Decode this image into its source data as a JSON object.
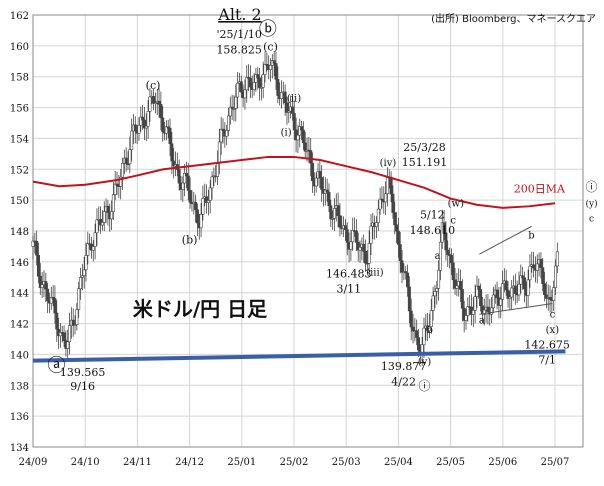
{
  "chart_data": {
    "type": "bar",
    "title": "Alt. 2",
    "subtitle": "米ドル/円 日足",
    "source": "(出所) Bloomberg、マネースクエア",
    "xlabel": "",
    "ylabel": "",
    "ylim": [
      134,
      162
    ],
    "yticks": [
      134,
      136,
      138,
      140,
      142,
      144,
      146,
      148,
      150,
      152,
      154,
      156,
      158,
      160,
      162
    ],
    "xticks": [
      "24/09",
      "24/10",
      "24/11",
      "24/12",
      "25/01",
      "25/02",
      "25/03",
      "25/04",
      "25/05",
      "25/06",
      "25/07"
    ],
    "grid": true,
    "colors": {
      "candles": "#444444",
      "ma": "#c0141c",
      "trendline": "#3a5fa8",
      "wedge": "#555555",
      "text": "#111111"
    },
    "series": [
      {
        "name": "200日MA",
        "type": "line",
        "points": [
          [
            0.0,
            151.2
          ],
          [
            0.5,
            150.9
          ],
          [
            1.0,
            151.0
          ],
          [
            1.6,
            151.3
          ],
          [
            2.0,
            151.6
          ],
          [
            2.5,
            152.0
          ],
          [
            3.0,
            152.2
          ],
          [
            3.5,
            152.4
          ],
          [
            4.0,
            152.6
          ],
          [
            4.5,
            152.8
          ],
          [
            5.0,
            152.8
          ],
          [
            5.5,
            152.6
          ],
          [
            6.0,
            152.2
          ],
          [
            6.5,
            151.8
          ],
          [
            7.0,
            151.3
          ],
          [
            7.5,
            150.8
          ],
          [
            8.0,
            150.1
          ],
          [
            8.5,
            149.7
          ],
          [
            9.0,
            149.5
          ],
          [
            9.5,
            149.6
          ],
          [
            10.0,
            149.8
          ]
        ]
      },
      {
        "name": "",
        "type": "candles",
        "closes": [
          [
            0.0,
            147.0
          ],
          [
            0.15,
            145.0
          ],
          [
            0.3,
            143.5
          ],
          [
            0.45,
            142.5
          ],
          [
            0.55,
            141.0
          ],
          [
            0.65,
            140.5
          ],
          [
            0.75,
            142.0
          ],
          [
            0.85,
            143.5
          ],
          [
            1.0,
            146.0
          ],
          [
            1.15,
            147.8
          ],
          [
            1.3,
            148.5
          ],
          [
            1.45,
            149.5
          ],
          [
            1.6,
            150.5
          ],
          [
            1.75,
            152.5
          ],
          [
            1.9,
            154.0
          ],
          [
            2.05,
            155.0
          ],
          [
            2.2,
            155.6
          ],
          [
            2.35,
            156.7
          ],
          [
            2.5,
            155.0
          ],
          [
            2.65,
            153.0
          ],
          [
            2.8,
            151.5
          ],
          [
            3.0,
            150.5
          ],
          [
            3.1,
            149.5
          ],
          [
            3.2,
            148.5
          ],
          [
            3.35,
            150.5
          ],
          [
            3.5,
            152.0
          ],
          [
            3.65,
            154.5
          ],
          [
            3.8,
            156.0
          ],
          [
            3.95,
            157.0
          ],
          [
            4.1,
            157.8
          ],
          [
            4.25,
            157.2
          ],
          [
            4.4,
            158.3
          ],
          [
            4.55,
            158.8
          ],
          [
            4.7,
            157.5
          ],
          [
            4.85,
            156.0
          ],
          [
            5.0,
            155.0
          ],
          [
            5.1,
            154.5
          ],
          [
            5.2,
            153.5
          ],
          [
            5.35,
            152.0
          ],
          [
            5.5,
            151.0
          ],
          [
            5.65,
            150.0
          ],
          [
            5.8,
            149.0
          ],
          [
            5.95,
            148.0
          ],
          [
            6.1,
            147.5
          ],
          [
            6.25,
            147.0
          ],
          [
            6.4,
            146.5
          ],
          [
            6.55,
            148.5
          ],
          [
            6.7,
            150.5
          ],
          [
            6.8,
            151.0
          ],
          [
            6.9,
            149.5
          ],
          [
            7.0,
            147.0
          ],
          [
            7.1,
            145.5
          ],
          [
            7.2,
            143.0
          ],
          [
            7.3,
            141.5
          ],
          [
            7.45,
            140.2
          ],
          [
            7.6,
            142.5
          ],
          [
            7.75,
            145.0
          ],
          [
            7.85,
            148.0
          ],
          [
            7.95,
            147.0
          ],
          [
            8.05,
            145.0
          ],
          [
            8.15,
            144.0
          ],
          [
            8.25,
            143.0
          ],
          [
            8.4,
            142.8
          ],
          [
            8.55,
            144.0
          ],
          [
            8.7,
            142.5
          ],
          [
            8.85,
            143.5
          ],
          [
            9.0,
            144.5
          ],
          [
            9.15,
            143.5
          ],
          [
            9.3,
            145.0
          ],
          [
            9.45,
            144.0
          ],
          [
            9.6,
            146.5
          ],
          [
            9.75,
            145.0
          ],
          [
            9.85,
            143.0
          ],
          [
            9.95,
            144.5
          ],
          [
            10.05,
            146.0
          ]
        ]
      }
    ],
    "annotations": [
      {
        "text": "ⓐ",
        "x": 0.45,
        "y": 138.9,
        "size": 18
      },
      {
        "text": "139.565",
        "x": 0.95,
        "y": 138.6,
        "size": 11
      },
      {
        "text": "9/16",
        "x": 0.95,
        "y": 137.7,
        "size": 11
      },
      {
        "text": "(c)",
        "x": 2.3,
        "y": 157.2,
        "size": 11
      },
      {
        "text": "(b)",
        "x": 3.0,
        "y": 147.2,
        "size": 11
      },
      {
        "text": "'25/1/10",
        "x": 3.95,
        "y": 160.5,
        "size": 11
      },
      {
        "text": "158.825",
        "x": 3.95,
        "y": 159.5,
        "size": 11
      },
      {
        "text": "ⓑ",
        "x": 4.5,
        "y": 160.7,
        "size": 18
      },
      {
        "text": "(c)",
        "x": 4.55,
        "y": 159.7,
        "size": 11
      },
      {
        "text": "(ii)",
        "x": 5.0,
        "y": 156.4,
        "size": 10
      },
      {
        "text": "(i)",
        "x": 4.85,
        "y": 154.2,
        "size": 10
      },
      {
        "text": "(iv)",
        "x": 6.8,
        "y": 152.2,
        "size": 10
      },
      {
        "text": "25/3/28",
        "x": 7.5,
        "y": 153.2,
        "size": 11
      },
      {
        "text": "151.191",
        "x": 7.5,
        "y": 152.2,
        "size": 11
      },
      {
        "text": "146.483",
        "x": 6.05,
        "y": 145.0,
        "size": 11
      },
      {
        "text": "3/11",
        "x": 6.05,
        "y": 144.0,
        "size": 11
      },
      {
        "text": "(iii)",
        "x": 6.55,
        "y": 145.1,
        "size": 10
      },
      {
        "text": "(w)",
        "x": 8.1,
        "y": 149.6,
        "size": 10
      },
      {
        "text": "5/12",
        "x": 7.65,
        "y": 148.8,
        "size": 11
      },
      {
        "text": "c",
        "x": 8.05,
        "y": 148.5,
        "size": 10
      },
      {
        "text": "148.610",
        "x": 7.65,
        "y": 147.8,
        "size": 11
      },
      {
        "text": "200日MA",
        "x": 9.7,
        "y": 150.5,
        "size": 11,
        "color": "#c0141c"
      },
      {
        "text": "ⓘ",
        "x": 10.7,
        "y": 150.6,
        "size": 12
      },
      {
        "text": "(y)",
        "x": 10.7,
        "y": 149.6,
        "size": 9
      },
      {
        "text": "c",
        "x": 10.7,
        "y": 148.6,
        "size": 9
      },
      {
        "text": "a",
        "x": 7.75,
        "y": 146.2,
        "size": 10
      },
      {
        "text": "b",
        "x": 7.6,
        "y": 141.4,
        "size": 10
      },
      {
        "text": "a",
        "x": 8.6,
        "y": 142.0,
        "size": 10
      },
      {
        "text": "b",
        "x": 9.55,
        "y": 147.5,
        "size": 10
      },
      {
        "text": "c",
        "x": 9.95,
        "y": 142.4,
        "size": 10
      },
      {
        "text": "(x)",
        "x": 9.95,
        "y": 141.4,
        "size": 10
      },
      {
        "text": "139.877",
        "x": 7.1,
        "y": 139.0,
        "size": 11
      },
      {
        "text": "4/22",
        "x": 7.1,
        "y": 138.0,
        "size": 11
      },
      {
        "text": "(v)",
        "x": 7.5,
        "y": 139.3,
        "size": 10
      },
      {
        "text": "ⓘ",
        "x": 7.5,
        "y": 137.7,
        "size": 12
      },
      {
        "text": "142.675",
        "x": 9.85,
        "y": 140.4,
        "size": 11
      },
      {
        "text": "7/1",
        "x": 9.85,
        "y": 139.4,
        "size": 11
      }
    ],
    "trendline": {
      "points": [
        [
          0.0,
          139.6
        ],
        [
          10.2,
          140.2
        ]
      ]
    },
    "wedge": {
      "upper": [
        [
          8.55,
          146.5
        ],
        [
          9.55,
          148.3
        ]
      ],
      "lower": [
        [
          8.55,
          142.6
        ],
        [
          9.95,
          143.3
        ]
      ]
    }
  }
}
